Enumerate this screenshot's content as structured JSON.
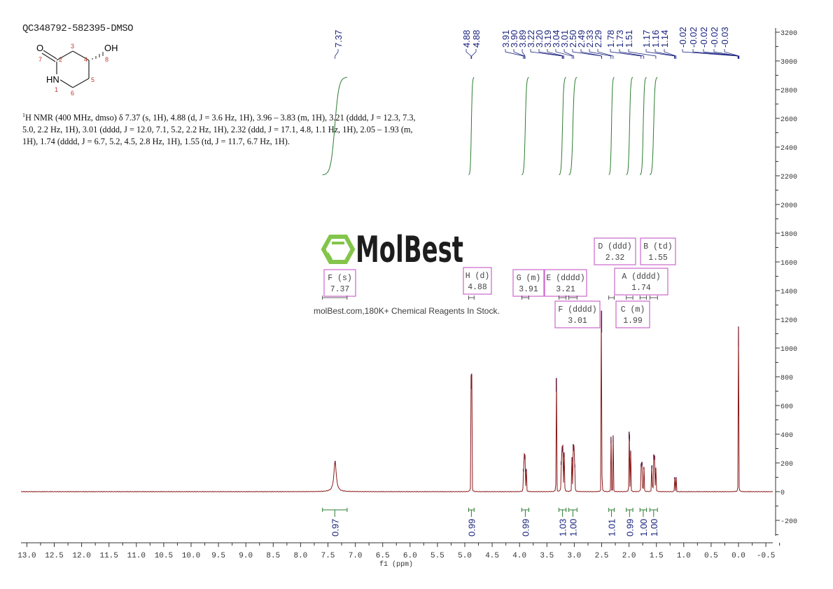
{
  "sample_id": "QC348792-582395-DMSO",
  "structure": {
    "atoms": [
      "O",
      "OH",
      "HN"
    ],
    "atom_numbers": [
      "1",
      "2",
      "3",
      "4",
      "5",
      "6",
      "7",
      "8"
    ]
  },
  "nmr_description": {
    "sup": "1",
    "text": "H NMR (400 MHz, dmso) δ 7.37 (s, 1H), 4.88 (d, J = 3.6 Hz, 1H), 3.96 – 3.83 (m, 1H), 3.21 (dddd, J = 12.3, 7.3, 5.0, 2.2 Hz, 1H), 3.01 (dddd, J = 12.0, 7.1, 5.2, 2.2 Hz, 1H), 2.32 (ddd, J = 17.1, 4.8, 1.1 Hz, 1H), 2.05 – 1.93 (m, 1H), 1.74 (dddd, J = 6.7, 5.2, 4.5, 2.8 Hz, 1H), 1.55 (td, J = 11.7, 6.7 Hz, 1H)."
  },
  "watermark": {
    "logo_text": "MolBest",
    "tagline": "molBest.com,180K+ Chemical Reagents In Stock.",
    "logo_color": "#7dc242"
  },
  "colors": {
    "spectrum": "#8b1a1a",
    "peak_tops": "#1a2a9a",
    "integral": "#2e7d32",
    "peak_labels": "#1a237e",
    "multiplet_box": "#cc66cc"
  },
  "chart_data": {
    "type": "line",
    "title": "",
    "xlabel": "f1 (ppm)",
    "ylabel": "",
    "xlim": [
      13.0,
      -0.5
    ],
    "ylim": [
      -300,
      3200
    ],
    "x_ticks": [
      "13.0",
      "12.5",
      "12.0",
      "11.5",
      "11.0",
      "10.5",
      "10.0",
      "9.5",
      "9.0",
      "8.5",
      "8.0",
      "7.5",
      "7.0",
      "6.5",
      "6.0",
      "5.5",
      "5.0",
      "4.5",
      "4.0",
      "3.5",
      "3.0",
      "2.5",
      "2.0",
      "1.5",
      "1.0",
      "0.5",
      "0.0",
      "-0.5"
    ],
    "y_ticks": [
      "3200",
      "3000",
      "2800",
      "2600",
      "2400",
      "2200",
      "2000",
      "1800",
      "1600",
      "1400",
      "1200",
      "1000",
      "800",
      "600",
      "400",
      "200",
      "0",
      "-200"
    ],
    "peak_labels": [
      "7.37",
      "4.88",
      "4.88",
      "3.91",
      "3.90",
      "3.89",
      "3.22",
      "3.20",
      "3.19",
      "3.04",
      "3.01",
      "2.50",
      "2.49",
      "2.33",
      "2.29",
      "1.78",
      "1.73",
      "1.51",
      "1.17",
      "1.16",
      "1.14",
      "-0.02",
      "-0.02",
      "-0.02",
      "-0.02",
      "-0.03"
    ],
    "peaks": [
      {
        "ppm": 7.37,
        "height": 215,
        "width": 0.025
      },
      {
        "ppm": 4.885,
        "height": 780,
        "width": 0.002
      },
      {
        "ppm": 4.875,
        "height": 790,
        "width": 0.002
      },
      {
        "ppm": 3.93,
        "height": 150,
        "width": 0.003
      },
      {
        "ppm": 3.91,
        "height": 240,
        "width": 0.003
      },
      {
        "ppm": 3.9,
        "height": 230,
        "width": 0.003
      },
      {
        "ppm": 3.88,
        "height": 150,
        "width": 0.003
      },
      {
        "ppm": 3.33,
        "height": 790,
        "width": 0.002
      },
      {
        "ppm": 3.24,
        "height": 200,
        "width": 0.003
      },
      {
        "ppm": 3.22,
        "height": 280,
        "width": 0.003
      },
      {
        "ppm": 3.21,
        "height": 290,
        "width": 0.003
      },
      {
        "ppm": 3.19,
        "height": 250,
        "width": 0.003
      },
      {
        "ppm": 3.18,
        "height": 150,
        "width": 0.003
      },
      {
        "ppm": 3.04,
        "height": 230,
        "width": 0.003
      },
      {
        "ppm": 3.02,
        "height": 300,
        "width": 0.003
      },
      {
        "ppm": 3.01,
        "height": 290,
        "width": 0.003
      },
      {
        "ppm": 2.99,
        "height": 180,
        "width": 0.003
      },
      {
        "ppm": 2.5,
        "height": 1260,
        "width": 0.002
      },
      {
        "ppm": 2.33,
        "height": 380,
        "width": 0.002
      },
      {
        "ppm": 2.29,
        "height": 390,
        "width": 0.002
      },
      {
        "ppm": 2.0,
        "height": 400,
        "width": 0.002
      },
      {
        "ppm": 1.99,
        "height": 380,
        "width": 0.002
      },
      {
        "ppm": 1.97,
        "height": 280,
        "width": 0.002
      },
      {
        "ppm": 1.78,
        "height": 190,
        "width": 0.003
      },
      {
        "ppm": 1.76,
        "height": 200,
        "width": 0.003
      },
      {
        "ppm": 1.73,
        "height": 170,
        "width": 0.003
      },
      {
        "ppm": 1.58,
        "height": 180,
        "width": 0.003
      },
      {
        "ppm": 1.55,
        "height": 250,
        "width": 0.003
      },
      {
        "ppm": 1.53,
        "height": 240,
        "width": 0.003
      },
      {
        "ppm": 1.51,
        "height": 160,
        "width": 0.003
      },
      {
        "ppm": 1.17,
        "height": 100,
        "width": 0.002
      },
      {
        "ppm": 1.14,
        "height": 100,
        "width": 0.002
      },
      {
        "ppm": 0.0,
        "height": 1150,
        "width": 0.002
      }
    ],
    "integrals": [
      {
        "from": 7.6,
        "to": 7.15,
        "value": "0.97"
      },
      {
        "from": 4.93,
        "to": 4.83,
        "value": "0.99"
      },
      {
        "from": 3.96,
        "to": 3.83,
        "value": "0.99"
      },
      {
        "from": 3.28,
        "to": 3.15,
        "value": "1.03"
      },
      {
        "from": 3.1,
        "to": 2.95,
        "value": "1.00"
      },
      {
        "from": 2.37,
        "to": 2.27,
        "value": "1.01"
      },
      {
        "from": 2.05,
        "to": 1.93,
        "value": "0.99"
      },
      {
        "from": 1.8,
        "to": 1.68,
        "value": "1.00"
      },
      {
        "from": 1.62,
        "to": 1.48,
        "value": "1.00"
      }
    ],
    "multiplets": [
      {
        "label": "F (s)",
        "shift": "7.37"
      },
      {
        "label": "H (d)",
        "shift": "4.88"
      },
      {
        "label": "G (m)",
        "shift": "3.91"
      },
      {
        "label": "E (dddd)",
        "shift": "3.21"
      },
      {
        "label": "F (dddd)",
        "shift": "3.01"
      },
      {
        "label": "D (ddd)",
        "shift": "2.32"
      },
      {
        "label": "B (td)",
        "shift": "1.55"
      },
      {
        "label": "A (dddd)",
        "shift": "1.74"
      },
      {
        "label": "C (m)",
        "shift": "1.99"
      }
    ]
  }
}
